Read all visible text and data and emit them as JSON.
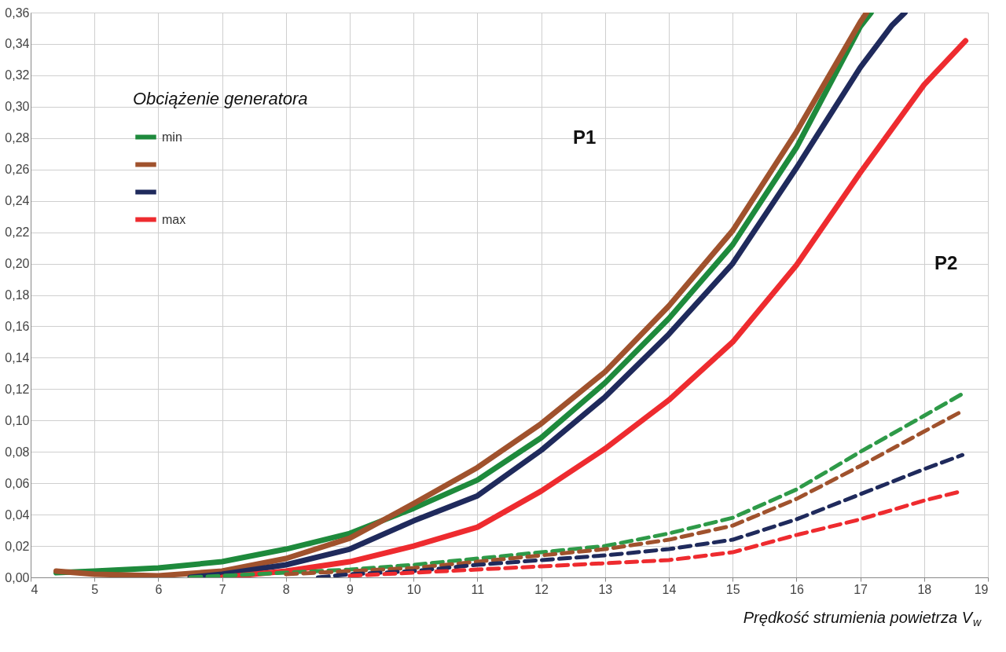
{
  "chart_data": {
    "type": "line",
    "legend_title": "Obciążenie generatora",
    "xlabel": "Prędkość strumienia powietrza V$_{w}$",
    "annotations": [
      "P1",
      "P2"
    ],
    "series": [
      {
        "name": "min",
        "color": "#1e8a3c",
        "line_style": "solid",
        "x": [
          4.4,
          5,
          6,
          7,
          8,
          9,
          10,
          11,
          12,
          13,
          14,
          15,
          16,
          17,
          17.17
        ],
        "values": [
          0.003,
          0.004,
          0.006,
          0.01,
          0.018,
          0.028,
          0.044,
          0.062,
          0.089,
          0.124,
          0.165,
          0.212,
          0.274,
          0.351,
          0.36
        ]
      },
      {
        "color": "#a0522d",
        "line_style": "solid",
        "x": [
          4.4,
          5,
          6,
          7,
          8,
          9,
          10,
          11,
          12,
          13,
          14,
          15,
          16,
          17,
          17.1
        ],
        "values": [
          0.004,
          0.002,
          0.001,
          0.004,
          0.012,
          0.025,
          0.047,
          0.07,
          0.098,
          0.131,
          0.173,
          0.221,
          0.284,
          0.354,
          0.36
        ]
      },
      {
        "color": "#1f2a5c",
        "line_style": "solid",
        "x": [
          6.5,
          7,
          8,
          9,
          10,
          11,
          12,
          13,
          14,
          15,
          16,
          17,
          17.5,
          17.7
        ],
        "values": [
          0.0,
          0.002,
          0.008,
          0.018,
          0.036,
          0.052,
          0.081,
          0.115,
          0.155,
          0.2,
          0.261,
          0.325,
          0.352,
          0.36
        ]
      },
      {
        "name": "max",
        "color": "#ee2b2f",
        "line_style": "solid",
        "x": [
          7,
          8,
          9,
          10,
          11,
          12,
          13,
          14,
          15,
          16,
          17,
          18,
          18.65
        ],
        "values": [
          0.0,
          0.004,
          0.01,
          0.02,
          0.032,
          0.055,
          0.082,
          0.113,
          0.15,
          0.199,
          0.258,
          0.314,
          0.342
        ]
      },
      {
        "color": "#2e9a48",
        "line_style": "dashed",
        "x": [
          6.5,
          8,
          9,
          10,
          11,
          12,
          13,
          14,
          15,
          16,
          17,
          18,
          18.6
        ],
        "values": [
          0.0,
          0.003,
          0.005,
          0.008,
          0.012,
          0.016,
          0.02,
          0.028,
          0.038,
          0.056,
          0.08,
          0.103,
          0.117
        ]
      },
      {
        "color": "#a0522d",
        "line_style": "dashed",
        "x": [
          8,
          9,
          10,
          11,
          12,
          13,
          14,
          15,
          16,
          17,
          18,
          18.6
        ],
        "values": [
          0.002,
          0.004,
          0.006,
          0.01,
          0.014,
          0.018,
          0.024,
          0.033,
          0.05,
          0.071,
          0.093,
          0.106
        ]
      },
      {
        "color": "#1f2a5c",
        "line_style": "dashed",
        "x": [
          8.5,
          9,
          10,
          11,
          12,
          13,
          14,
          15,
          16,
          17,
          18,
          18.6
        ],
        "values": [
          0.0,
          0.002,
          0.004,
          0.008,
          0.011,
          0.014,
          0.018,
          0.024,
          0.037,
          0.053,
          0.069,
          0.078
        ]
      },
      {
        "color": "#ee2b2f",
        "line_style": "dashed",
        "x": [
          9,
          10,
          11,
          12,
          13,
          14,
          15,
          16,
          17,
          18,
          18.6
        ],
        "values": [
          0.001,
          0.003,
          0.005,
          0.007,
          0.009,
          0.011,
          0.016,
          0.027,
          0.037,
          0.049,
          0.055
        ]
      }
    ],
    "xlim": [
      4,
      19
    ],
    "xticks": [
      4,
      5,
      6,
      7,
      8,
      9,
      10,
      11,
      12,
      13,
      14,
      15,
      16,
      17,
      18,
      19
    ],
    "ylim": [
      0,
      0.36
    ],
    "yticks": [
      {
        "value": 0,
        "label": "0,00"
      },
      {
        "value": 0.02,
        "label": "0,02"
      },
      {
        "value": 0.04,
        "label": "0,04"
      },
      {
        "value": 0.06,
        "label": "0,06"
      },
      {
        "value": 0.08,
        "label": "0,08"
      },
      {
        "value": 0.1,
        "label": "0,10"
      },
      {
        "value": 0.12,
        "label": "0,12"
      },
      {
        "value": 0.14,
        "label": "0,14"
      },
      {
        "value": 0.16,
        "label": "0,16"
      },
      {
        "value": 0.18,
        "label": "0,18"
      },
      {
        "value": 0.2,
        "label": "0,20"
      },
      {
        "value": 0.22,
        "label": "0,22"
      },
      {
        "value": 0.24,
        "label": "0,24"
      },
      {
        "value": 0.26,
        "label": "0,26"
      },
      {
        "value": 0.28,
        "label": "0,28"
      },
      {
        "value": 0.3,
        "label": "0,30"
      },
      {
        "value": 0.32,
        "label": "0,32"
      },
      {
        "value": 0.34,
        "label": "0,34"
      },
      {
        "value": 0.36,
        "label": "0,36"
      }
    ],
    "grid": true,
    "legend": "top left",
    "marker": "none"
  }
}
